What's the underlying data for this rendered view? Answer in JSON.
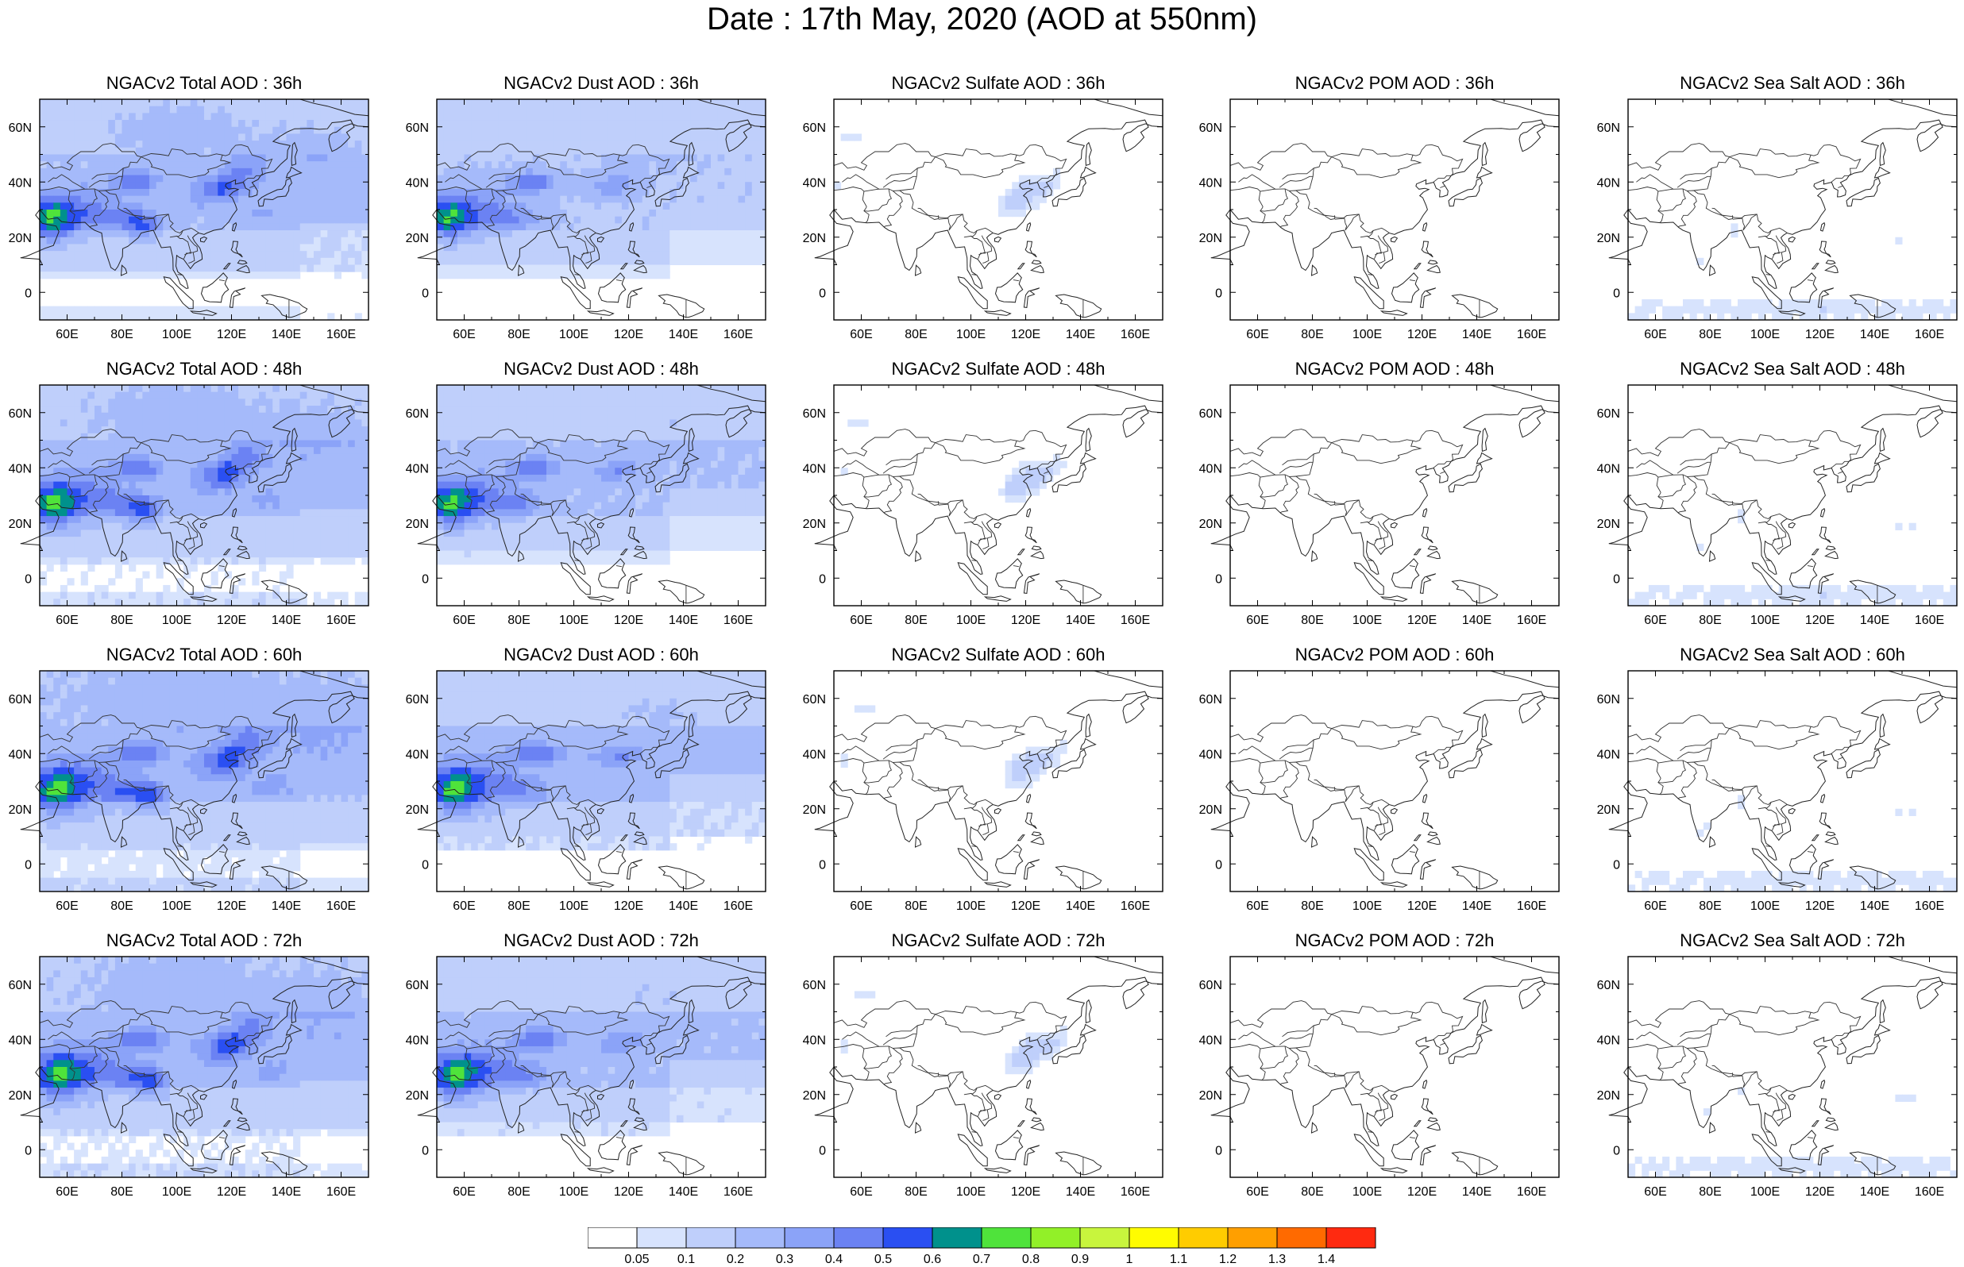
{
  "title": "Date : 17th May, 2020 (AOD at 550nm)",
  "map": {
    "lon_range": [
      50,
      170
    ],
    "lat_range": [
      -10,
      70
    ],
    "lon_ticks": [
      "60E",
      "80E",
      "100E",
      "120E",
      "140E",
      "160E"
    ],
    "lon_tick_values": [
      60,
      80,
      100,
      120,
      140,
      160
    ],
    "lat_ticks": [
      "60N",
      "40N",
      "20N",
      "0"
    ],
    "lat_tick_values": [
      60,
      40,
      20,
      0
    ]
  },
  "panels": [
    {
      "title": "NGACv2 Total AOD : 36h",
      "species": "total",
      "hour": 36
    },
    {
      "title": "NGACv2 Dust AOD : 36h",
      "species": "dust",
      "hour": 36
    },
    {
      "title": "NGACv2 Sulfate AOD : 36h",
      "species": "sulfate",
      "hour": 36
    },
    {
      "title": "NGACv2 POM AOD : 36h",
      "species": "pom",
      "hour": 36
    },
    {
      "title": "NGACv2 Sea Salt AOD : 36h",
      "species": "seasalt",
      "hour": 36
    },
    {
      "title": "NGACv2 Total AOD : 48h",
      "species": "total",
      "hour": 48
    },
    {
      "title": "NGACv2 Dust AOD : 48h",
      "species": "dust",
      "hour": 48
    },
    {
      "title": "NGACv2 Sulfate AOD : 48h",
      "species": "sulfate",
      "hour": 48
    },
    {
      "title": "NGACv2 POM AOD : 48h",
      "species": "pom",
      "hour": 48
    },
    {
      "title": "NGACv2 Sea Salt AOD : 48h",
      "species": "seasalt",
      "hour": 48
    },
    {
      "title": "NGACv2 Total AOD : 60h",
      "species": "total",
      "hour": 60
    },
    {
      "title": "NGACv2 Dust AOD : 60h",
      "species": "dust",
      "hour": 60
    },
    {
      "title": "NGACv2 Sulfate AOD : 60h",
      "species": "sulfate",
      "hour": 60
    },
    {
      "title": "NGACv2 POM AOD : 60h",
      "species": "pom",
      "hour": 60
    },
    {
      "title": "NGACv2 Sea Salt AOD : 60h",
      "species": "seasalt",
      "hour": 60
    },
    {
      "title": "NGACv2 Total AOD : 72h",
      "species": "total",
      "hour": 72
    },
    {
      "title": "NGACv2 Dust AOD : 72h",
      "species": "dust",
      "hour": 72
    },
    {
      "title": "NGACv2 Sulfate AOD : 72h",
      "species": "sulfate",
      "hour": 72
    },
    {
      "title": "NGACv2 POM AOD : 72h",
      "species": "pom",
      "hour": 72
    },
    {
      "title": "NGACv2 Sea Salt  AOD : 72h",
      "species": "seasalt",
      "hour": 72
    }
  ],
  "colorbar": {
    "labels": [
      "0.05",
      "0.1",
      "0.2",
      "0.3",
      "0.4",
      "0.5",
      "0.6",
      "0.7",
      "0.8",
      "0.9",
      "1",
      "1.1",
      "1.2",
      "1.3",
      "1.4"
    ],
    "colors": [
      "#ffffff",
      "#d7e3fd",
      "#bfcffb",
      "#a5bafa",
      "#8ba3f8",
      "#6b82f3",
      "#2a4ff2",
      "#00918c",
      "#4fe33b",
      "#92f028",
      "#c8f53d",
      "#fffc00",
      "#ffcc00",
      "#ff9f00",
      "#ff6a00",
      "#ff2a10"
    ]
  }
}
